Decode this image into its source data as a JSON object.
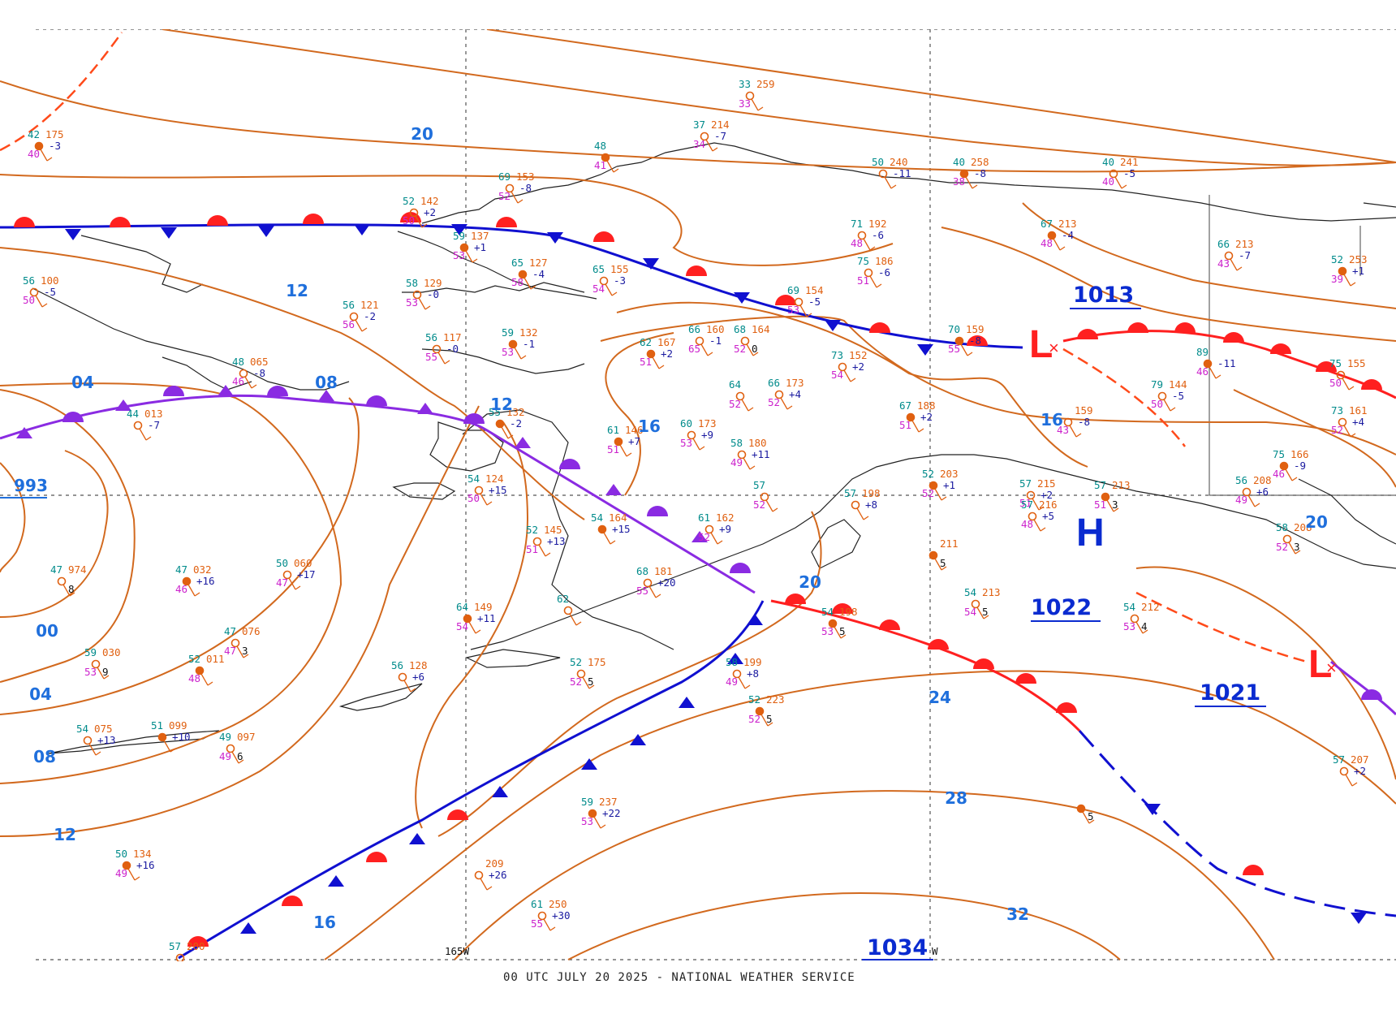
{
  "footer": "00 UTC JULY 20 2025 - NATIONAL WEATHER SERVICE",
  "longitude_labels": [
    "165W",
    "W"
  ],
  "colors": {
    "isobar": "#d2691e",
    "warm_front": "#ff2020",
    "cold_front": "#1010d0",
    "occluded_front": "#8a2be2",
    "isobar_label": "#1f6fdc",
    "low_symbol": "#ff2020",
    "high_symbol": "#1010d0"
  },
  "isobar_labels": [
    "20",
    "12",
    "04",
    "08",
    "993",
    "12",
    "16",
    "16",
    "00",
    "04",
    "08",
    "12",
    "16",
    "20",
    "20",
    "24",
    "28",
    "32",
    "1013",
    "1022",
    "1021",
    "1034"
  ],
  "pressure_centers": [
    {
      "type": "L",
      "value": "",
      "symbol": "L"
    },
    {
      "type": "H",
      "value": "1022",
      "symbol": "H"
    },
    {
      "type": "L",
      "value": "1021",
      "symbol": "L"
    },
    {
      "type": "",
      "value": "1013",
      "symbol": ""
    },
    {
      "type": "",
      "value": "1034",
      "symbol": ""
    }
  ],
  "stations": [
    {
      "t": "42",
      "p": "175",
      "d": "40",
      "x": "-3"
    },
    {
      "t": "33",
      "p": "259",
      "d": "33",
      "x": ""
    },
    {
      "t": "37",
      "p": "214",
      "d": "34",
      "x": "-7"
    },
    {
      "t": "48",
      "p": "",
      "d": "41",
      "x": ""
    },
    {
      "t": "69",
      "p": "153",
      "d": "52",
      "x": "-8"
    },
    {
      "t": "50",
      "p": "240",
      "d": "",
      "x": "-11"
    },
    {
      "t": "40",
      "p": "258",
      "d": "38",
      "x": "-8"
    },
    {
      "t": "40",
      "p": "241",
      "d": "40",
      "x": "-5"
    },
    {
      "t": "52",
      "p": "142",
      "d": "50",
      "x": "+2"
    },
    {
      "t": "59",
      "p": "137",
      "d": "53",
      "x": "+1"
    },
    {
      "t": "56",
      "p": "100",
      "d": "50",
      "x": "-5"
    },
    {
      "t": "58",
      "p": "129",
      "d": "53",
      "x": "-0"
    },
    {
      "t": "65",
      "p": "127",
      "d": "58",
      "x": "-4"
    },
    {
      "t": "65",
      "p": "155",
      "d": "54",
      "x": "-3"
    },
    {
      "t": "71",
      "p": "192",
      "d": "48",
      "x": "-6"
    },
    {
      "t": "67",
      "p": "213",
      "d": "48",
      "x": "-4"
    },
    {
      "t": "75",
      "p": "186",
      "d": "51",
      "x": "-6"
    },
    {
      "t": "66",
      "p": "213",
      "d": "43",
      "x": "-7"
    },
    {
      "t": "52",
      "p": "253",
      "d": "39",
      "x": "+1"
    },
    {
      "t": "56",
      "p": "121",
      "d": "56",
      "x": "-2"
    },
    {
      "t": "56",
      "p": "117",
      "d": "55",
      "x": "-0"
    },
    {
      "t": "59",
      "p": "132",
      "d": "53",
      "x": "-1"
    },
    {
      "t": "69",
      "p": "154",
      "d": "53",
      "x": "-5"
    },
    {
      "t": "48",
      "p": "065",
      "d": "46",
      "x": "-8"
    },
    {
      "t": "62",
      "p": "167",
      "d": "51",
      "x": "+2"
    },
    {
      "t": "66",
      "p": "160",
      "d": "65",
      "x": "-1"
    },
    {
      "t": "68",
      "p": "164",
      "d": "52",
      "x": "0"
    },
    {
      "t": "70",
      "p": "159",
      "d": "55",
      "x": "-8"
    },
    {
      "t": "73",
      "p": "152",
      "d": "54",
      "x": "+2"
    },
    {
      "t": "79",
      "p": "144",
      "d": "50",
      "x": "-5"
    },
    {
      "t": "89",
      "p": "",
      "d": "46",
      "x": "-11"
    },
    {
      "t": "75",
      "p": "155",
      "d": "50",
      "x": ""
    },
    {
      "t": "44",
      "p": "013",
      "d": "",
      "x": "-7"
    },
    {
      "t": "55",
      "p": "132",
      "d": "",
      "x": "-2"
    },
    {
      "t": "64",
      "p": "",
      "d": "52",
      "x": ""
    },
    {
      "t": "66",
      "p": "173",
      "d": "52",
      "x": "+4"
    },
    {
      "t": "67",
      "p": "188",
      "d": "51",
      "x": "+2"
    },
    {
      "t": "",
      "p": "159",
      "d": "43",
      "x": "-8"
    },
    {
      "t": "73",
      "p": "161",
      "d": "52",
      "x": "+4"
    },
    {
      "t": "61",
      "p": "146",
      "d": "51",
      "x": "+7"
    },
    {
      "t": "60",
      "p": "173",
      "d": "53",
      "x": "+9"
    },
    {
      "t": "58",
      "p": "180",
      "d": "49",
      "x": "+11"
    },
    {
      "t": "75",
      "p": "166",
      "d": "46",
      "x": "-9"
    },
    {
      "t": "54",
      "p": "124",
      "d": "50",
      "x": "+15"
    },
    {
      "t": "57",
      "p": "",
      "d": "52",
      "x": ""
    },
    {
      "t": "52",
      "p": "203",
      "d": "52",
      "x": "+1"
    },
    {
      "t": "57",
      "p": "215",
      "d": "51",
      "x": "+2"
    },
    {
      "t": "57",
      "p": "216",
      "d": "48",
      "x": "+5"
    },
    {
      "t": "57",
      "p": "213",
      "d": "51",
      "x": "3"
    },
    {
      "t": "56",
      "p": "208",
      "d": "49",
      "x": "+6"
    },
    {
      "t": "52",
      "p": "145",
      "d": "51",
      "x": "+13"
    },
    {
      "t": "54",
      "p": "164",
      "d": "",
      "x": "+15"
    },
    {
      "t": "61",
      "p": "162",
      "d": "52",
      "x": "+9"
    },
    {
      "t": "57",
      "p": "198",
      "d": "",
      "x": "+8"
    },
    {
      "t": "",
      "p": "211",
      "d": "",
      "x": "5"
    },
    {
      "t": "58",
      "p": "208",
      "d": "52",
      "x": "3"
    },
    {
      "t": "47",
      "p": "974",
      "d": "",
      "x": "8"
    },
    {
      "t": "47",
      "p": "032",
      "d": "46",
      "x": "+16"
    },
    {
      "t": "50",
      "p": "060",
      "d": "47",
      "x": "+17"
    },
    {
      "t": "68",
      "p": "181",
      "d": "55",
      "x": "+20"
    },
    {
      "t": "64",
      "p": "149",
      "d": "54",
      "x": "+11"
    },
    {
      "t": "54",
      "p": "213",
      "d": "54",
      "x": "5"
    },
    {
      "t": "54",
      "p": "212",
      "d": "53",
      "x": "4"
    },
    {
      "t": "54",
      "p": "198",
      "d": "53",
      "x": "5"
    },
    {
      "t": "59",
      "p": "030",
      "d": "53",
      "x": "9"
    },
    {
      "t": "47",
      "p": "076",
      "d": "47",
      "x": "3"
    },
    {
      "t": "52",
      "p": "011",
      "d": "48",
      "x": ""
    },
    {
      "t": "52",
      "p": "175",
      "d": "52",
      "x": "5"
    },
    {
      "t": "58",
      "p": "199",
      "d": "49",
      "x": "+8"
    },
    {
      "t": "52",
      "p": "223",
      "d": "52",
      "x": "5"
    },
    {
      "t": "56",
      "p": "128",
      "d": "",
      "x": "+6"
    },
    {
      "t": "54",
      "p": "075",
      "d": "",
      "x": "+13"
    },
    {
      "t": "51",
      "p": "099",
      "d": "",
      "x": "+10"
    },
    {
      "t": "49",
      "p": "097",
      "d": "49",
      "x": "6"
    },
    {
      "t": "57",
      "p": "207",
      "d": "",
      "x": "+2"
    },
    {
      "t": "59",
      "p": "237",
      "d": "53",
      "x": "+22"
    },
    {
      "t": "",
      "p": "209",
      "d": "",
      "x": "+26"
    },
    {
      "t": "61",
      "p": "250",
      "d": "55",
      "x": "+30"
    },
    {
      "t": "50",
      "p": "134",
      "d": "49",
      "x": "+16"
    },
    {
      "t": "57",
      "p": "200",
      "d": "",
      "x": ""
    },
    {
      "t": "62",
      "p": "",
      "d": "",
      "x": ""
    },
    {
      "t": "",
      "p": "",
      "d": "",
      "x": "5"
    }
  ]
}
